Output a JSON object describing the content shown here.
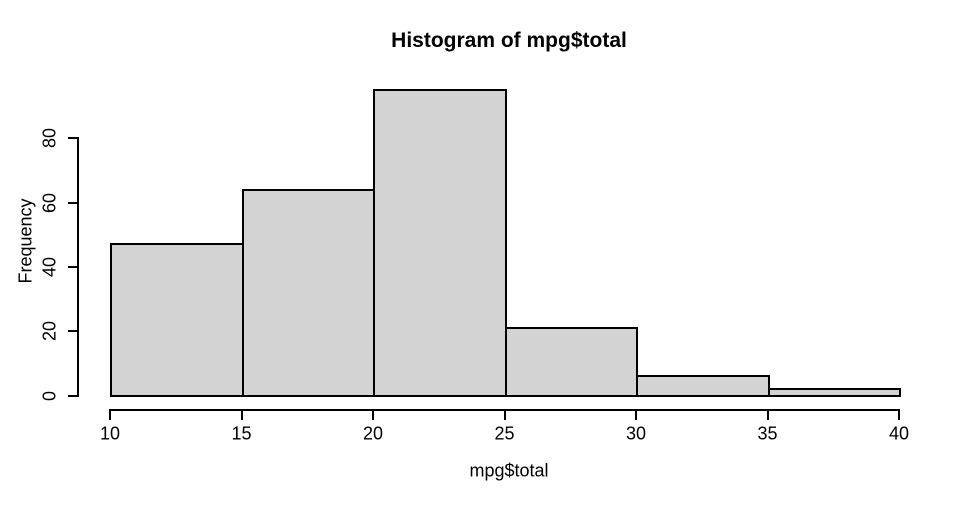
{
  "title": "Histogram of mpg$total",
  "chart_data": {
    "type": "bar",
    "variant": "histogram",
    "title": "Histogram of mpg$total",
    "xlabel": "mpg$total",
    "ylabel": "Frequency",
    "bins": [
      {
        "start": 10,
        "end": 15,
        "count": 47
      },
      {
        "start": 15,
        "end": 20,
        "count": 64
      },
      {
        "start": 20,
        "end": 25,
        "count": 95
      },
      {
        "start": 25,
        "end": 30,
        "count": 21
      },
      {
        "start": 30,
        "end": 35,
        "count": 6
      },
      {
        "start": 35,
        "end": 40,
        "count": 2
      }
    ],
    "x_ticks": [
      10,
      15,
      20,
      25,
      30,
      35,
      40
    ],
    "y_ticks": [
      0,
      20,
      40,
      60,
      80
    ],
    "xlim": [
      10,
      40
    ],
    "ylim": [
      0,
      95
    ],
    "grid": false,
    "legend": null,
    "colors": {
      "bar_fill": "#d3d3d3",
      "bar_border": "#000000",
      "axis": "#000000",
      "text": "#000000",
      "background": "#ffffff"
    }
  }
}
